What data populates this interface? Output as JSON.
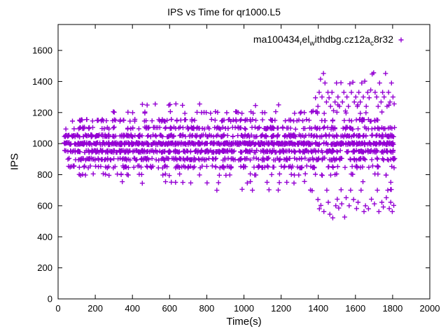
{
  "title": "IPS vs Time for qr1000.L5",
  "colors": {
    "marker": "#9400d3",
    "axis": "#000000",
    "background": "#ffffff",
    "text": "#000000"
  },
  "chart_data": {
    "type": "scatter",
    "title": "IPS vs Time for qr1000.L5",
    "xlabel": "Time(s)",
    "ylabel": "IPS",
    "xlim": [
      0,
      2000
    ],
    "ylim": [
      0,
      1767
    ],
    "xticks": [
      0,
      200,
      400,
      600,
      800,
      1000,
      1200,
      1400,
      1600,
      1800,
      2000
    ],
    "yticks": [
      0,
      200,
      400,
      600,
      800,
      1000,
      1200,
      1400,
      1600
    ],
    "grid": false,
    "marker": {
      "shape": "plus",
      "size": 7,
      "color": "#9400d3"
    },
    "legend": {
      "position": "top-right-inside",
      "label": "ma100434_rel_withdbg.cz12a_c8r32",
      "segments": [
        {
          "text": "ma100434"
        },
        {
          "text": "r",
          "sub": true
        },
        {
          "text": "el"
        },
        {
          "text": "w",
          "sub": true
        },
        {
          "text": "ithdbg.cz12a"
        },
        {
          "text": "c",
          "sub": true
        },
        {
          "text": "8r32"
        }
      ]
    },
    "seed": 42,
    "bands": [
      {
        "ips": 1000,
        "count": 520,
        "x_range": [
          30,
          1812
        ],
        "y_jitter": 7
      },
      {
        "ips": 950,
        "count": 330,
        "x_range": [
          30,
          1812
        ],
        "y_jitter": 7
      },
      {
        "ips": 1050,
        "count": 260,
        "x_range": [
          30,
          1812
        ],
        "y_jitter": 7
      },
      {
        "ips": 900,
        "count": 210,
        "x_range": [
          40,
          1812
        ],
        "y_jitter": 7
      },
      {
        "ips": 1100,
        "count": 160,
        "x_range": [
          40,
          1812
        ],
        "y_jitter": 7
      },
      {
        "ips": 850,
        "count": 130,
        "x_range": [
          40,
          1812
        ],
        "y_jitter": 7
      },
      {
        "ips": 1150,
        "count": 110,
        "x_range": [
          55,
          1790
        ],
        "y_jitter": 7
      },
      {
        "ips": 800,
        "count": 45,
        "x_range": [
          90,
          1812
        ],
        "y_jitter": 6
      },
      {
        "ips": 1200,
        "count": 40,
        "x_range": [
          150,
          1812
        ],
        "y_jitter": 6
      },
      {
        "ips": 750,
        "count": 18,
        "x_range": [
          330,
          1812
        ],
        "y_jitter": 6
      },
      {
        "ips": 1250,
        "count": 14,
        "x_range": [
          330,
          1812
        ],
        "y_jitter": 6
      },
      {
        "ips": 700,
        "count": 10,
        "x_range": [
          620,
          1812
        ],
        "y_jitter": 6
      }
    ],
    "outliers": [
      [
        1372,
        1210
      ],
      [
        1385,
        1295
      ],
      [
        1398,
        1240
      ],
      [
        1405,
        1330
      ],
      [
        1412,
        1415
      ],
      [
        1420,
        1300
      ],
      [
        1428,
        1452
      ],
      [
        1436,
        1390
      ],
      [
        1444,
        1268
      ],
      [
        1452,
        1330
      ],
      [
        1458,
        1295
      ],
      [
        1466,
        1240
      ],
      [
        1474,
        1330
      ],
      [
        1482,
        1212
      ],
      [
        1490,
        1268
      ],
      [
        1498,
        1390
      ],
      [
        1506,
        1300
      ],
      [
        1514,
        1240
      ],
      [
        1522,
        1392
      ],
      [
        1530,
        1268
      ],
      [
        1538,
        1330
      ],
      [
        1546,
        1210
      ],
      [
        1554,
        1300
      ],
      [
        1562,
        1240
      ],
      [
        1570,
        1385
      ],
      [
        1578,
        1330
      ],
      [
        1586,
        1395
      ],
      [
        1594,
        1268
      ],
      [
        1602,
        1300
      ],
      [
        1610,
        1240
      ],
      [
        1618,
        1330
      ],
      [
        1626,
        1268
      ],
      [
        1634,
        1390
      ],
      [
        1642,
        1300
      ],
      [
        1650,
        1402
      ],
      [
        1658,
        1240
      ],
      [
        1666,
        1330
      ],
      [
        1674,
        1295
      ],
      [
        1682,
        1345
      ],
      [
        1690,
        1448
      ],
      [
        1698,
        1456
      ],
      [
        1706,
        1330
      ],
      [
        1714,
        1300
      ],
      [
        1722,
        1240
      ],
      [
        1730,
        1390
      ],
      [
        1738,
        1268
      ],
      [
        1746,
        1330
      ],
      [
        1754,
        1300
      ],
      [
        1762,
        1452
      ],
      [
        1770,
        1240
      ],
      [
        1778,
        1330
      ],
      [
        1786,
        1268
      ],
      [
        1794,
        1390
      ],
      [
        1802,
        1300
      ],
      [
        1398,
        640
      ],
      [
        1406,
        580
      ],
      [
        1414,
        602
      ],
      [
        1430,
        562
      ],
      [
        1446,
        700
      ],
      [
        1454,
        622
      ],
      [
        1462,
        545
      ],
      [
        1478,
        522
      ],
      [
        1494,
        600
      ],
      [
        1502,
        642
      ],
      [
        1510,
        585
      ],
      [
        1526,
        612
      ],
      [
        1542,
        527
      ],
      [
        1550,
        652
      ],
      [
        1566,
        600
      ],
      [
        1574,
        700
      ],
      [
        1590,
        640
      ],
      [
        1606,
        582
      ],
      [
        1614,
        622
      ],
      [
        1630,
        700
      ],
      [
        1646,
        562
      ],
      [
        1654,
        600
      ],
      [
        1670,
        580
      ],
      [
        1686,
        642
      ],
      [
        1702,
        612
      ],
      [
        1718,
        700
      ],
      [
        1726,
        562
      ],
      [
        1742,
        622
      ],
      [
        1750,
        592
      ],
      [
        1766,
        652
      ],
      [
        1774,
        700
      ],
      [
        1782,
        582
      ],
      [
        1790,
        622
      ],
      [
        1798,
        562
      ],
      [
        1806,
        602
      ]
    ]
  }
}
